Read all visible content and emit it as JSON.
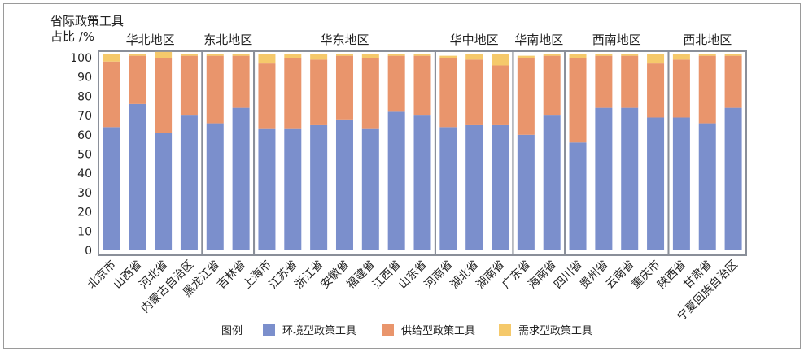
{
  "chart_data": {
    "type": "bar",
    "stacked": true,
    "ylabel_line1": "省际政策工具",
    "ylabel_line2": "占比 /%",
    "ylim": [
      0,
      100
    ],
    "yticks": [
      0,
      10,
      20,
      30,
      40,
      50,
      60,
      70,
      80,
      90,
      100
    ],
    "grid": false,
    "legend_position": "bottom",
    "legend_title": "图例",
    "categories": [
      "北京市",
      "山西省",
      "河北省",
      "内蒙古自治区",
      "黑龙江省",
      "吉林省",
      "上海市",
      "江苏省",
      "浙江省",
      "安徽省",
      "福建省",
      "江西省",
      "山东省",
      "河南省",
      "湖北省",
      "湖南省",
      "广东省",
      "海南省",
      "四川省",
      "贵州省",
      "云南省",
      "重庆市",
      "陕西省",
      "甘肃省",
      "宁夏回族自治区"
    ],
    "series": [
      {
        "name": "环境型政策工具",
        "color": "#7b8fcc",
        "values": [
          64,
          76,
          61,
          70,
          66,
          74,
          63,
          63,
          65,
          68,
          63,
          72,
          70,
          64,
          65,
          65,
          60,
          70,
          56,
          74,
          74,
          69,
          69,
          66,
          74
        ]
      },
      {
        "name": "供给型政策工具",
        "color": "#e9956c",
        "values": [
          34,
          25,
          39,
          31,
          35,
          27,
          34,
          37,
          34,
          33,
          37,
          29,
          31,
          36,
          34,
          31,
          40,
          31,
          44,
          27,
          27,
          28,
          30,
          35,
          27
        ]
      },
      {
        "name": "需求型政策工具",
        "color": "#f5c96b",
        "values": [
          4,
          1,
          3,
          1,
          1,
          1,
          5,
          2,
          3,
          1,
          2,
          1,
          1,
          1,
          3,
          6,
          1,
          1,
          2,
          1,
          1,
          5,
          3,
          1,
          1
        ]
      }
    ],
    "groups": [
      {
        "name": "华北地区",
        "start": 0,
        "end": 3
      },
      {
        "name": "东北地区",
        "start": 4,
        "end": 5
      },
      {
        "name": "华东地区",
        "start": 6,
        "end": 12
      },
      {
        "name": "华中地区",
        "start": 13,
        "end": 15
      },
      {
        "name": "华南地区",
        "start": 16,
        "end": 17
      },
      {
        "name": "西南地区",
        "start": 18,
        "end": 21
      },
      {
        "name": "西北地区",
        "start": 22,
        "end": 24
      }
    ]
  }
}
